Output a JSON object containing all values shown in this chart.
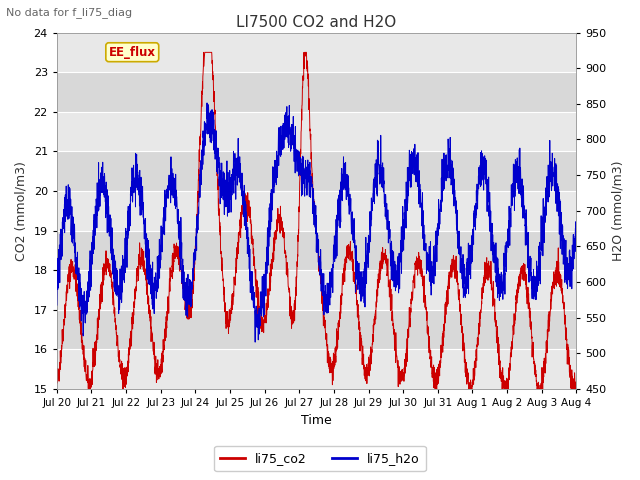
{
  "title": "LI7500 CO2 and H2O",
  "top_left_text": "No data for f_li75_diag",
  "annotation_text": "EE_flux",
  "ylabel_left": "CO2 (mmol/m3)",
  "ylabel_right": "H2O (mmol/m3)",
  "xlabel": "Time",
  "ylim_left": [
    15.0,
    24.0
  ],
  "ylim_right": [
    450,
    950
  ],
  "yticks_left": [
    15.0,
    16.0,
    17.0,
    18.0,
    19.0,
    20.0,
    21.0,
    22.0,
    23.0,
    24.0
  ],
  "yticks_right": [
    450,
    500,
    550,
    600,
    650,
    700,
    750,
    800,
    850,
    900,
    950
  ],
  "xtick_labels": [
    "Jul 20",
    "Jul 21",
    "Jul 22",
    "Jul 23",
    "Jul 24",
    "Jul 25",
    "Jul 26",
    "Jul 27",
    "Jul 28",
    "Jul 29",
    "Jul 30",
    "Jul 31",
    "Aug 1",
    "Aug 2",
    "Aug 3",
    "Aug 4"
  ],
  "co2_color": "#cc0000",
  "h2o_color": "#0000cc",
  "fig_facecolor": "#ffffff",
  "plot_bg_color": "#e8e8e8",
  "grid_color": "#ffffff",
  "legend_co2": "li75_co2",
  "legend_h2o": "li75_h2o",
  "annotation_bg": "#ffffcc",
  "annotation_border": "#ccaa00",
  "annotation_text_color": "#cc0000",
  "title_fontsize": 11,
  "axis_label_fontsize": 9,
  "tick_fontsize": 8
}
